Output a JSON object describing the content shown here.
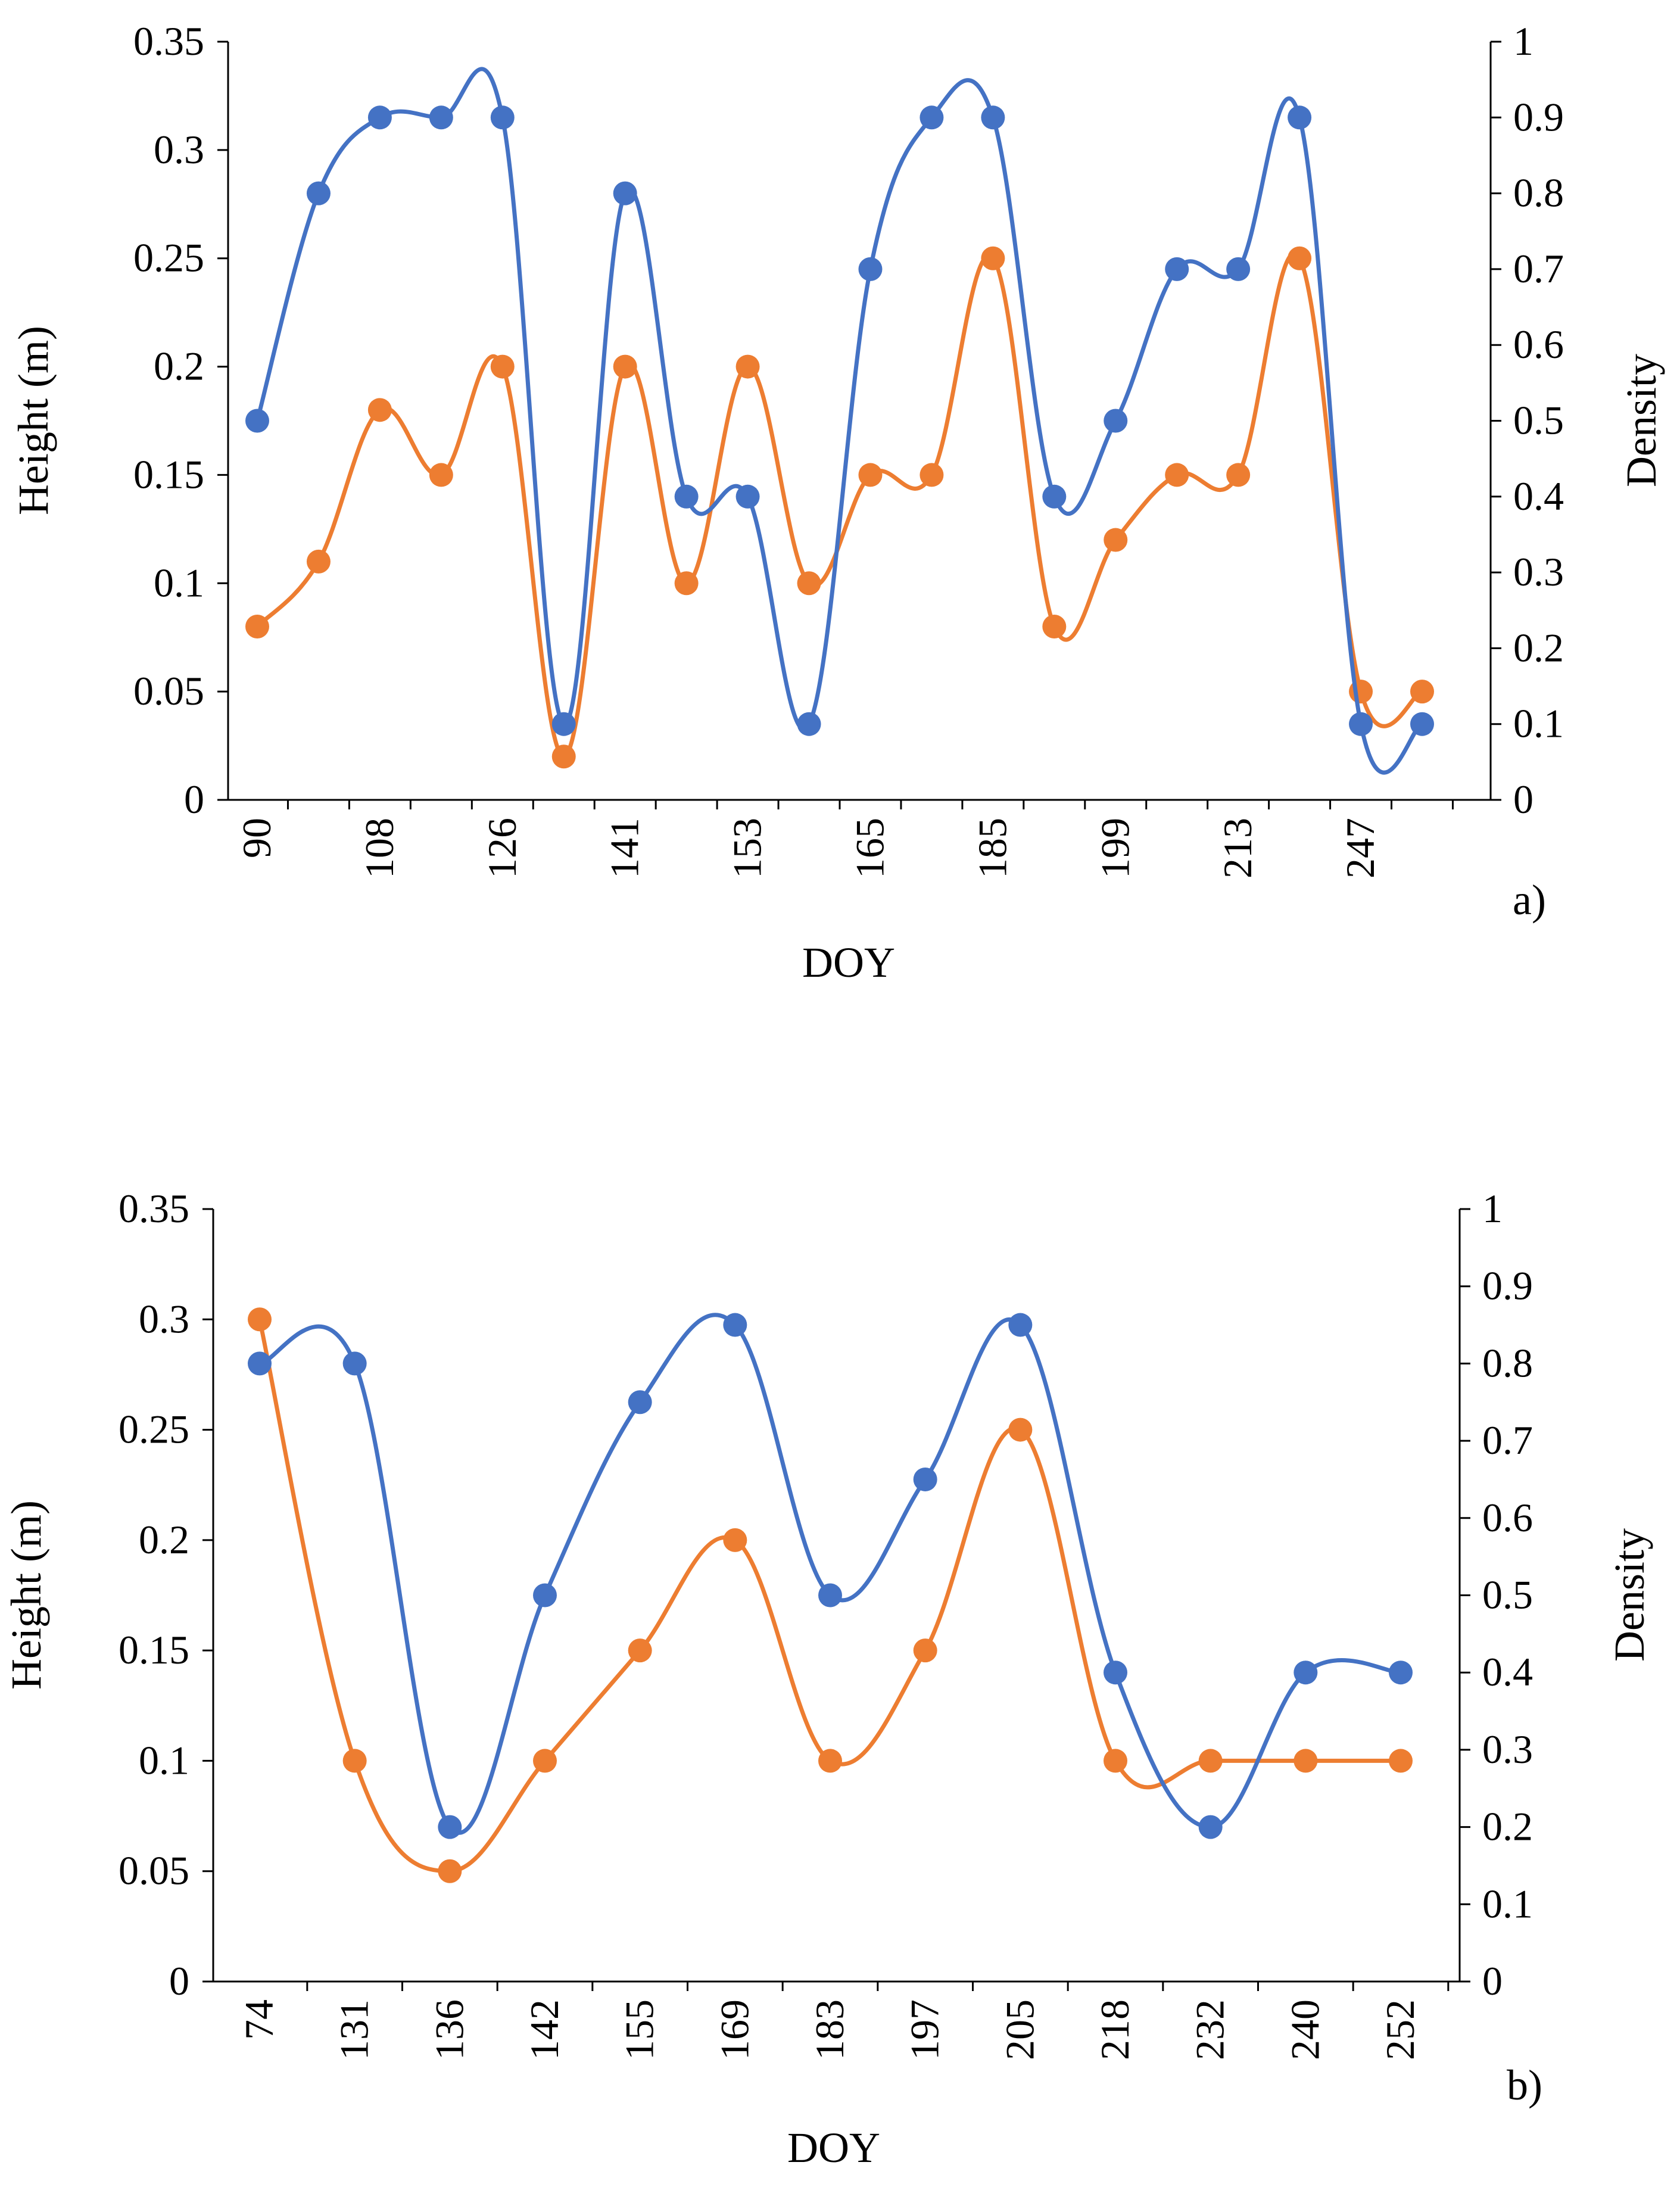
{
  "colors": {
    "height_series": "#ED7D31",
    "density_series": "#4472C4",
    "axis": "#000000"
  },
  "chart_data": [
    {
      "type": "line",
      "panel_label": "a)",
      "xlabel": "DOY",
      "ylabel": "Height (m)",
      "y2label": "Density",
      "ylim": [
        0,
        0.35
      ],
      "y2lim": [
        0,
        1
      ],
      "yticks": [
        "0",
        "0.05",
        "0.1",
        "0.15",
        "0.2",
        "0.25",
        "0.3",
        "0.35"
      ],
      "y2ticks": [
        "0",
        "0.1",
        "0.2",
        "0.3",
        "0.4",
        "0.5",
        "0.6",
        "0.7",
        "0.8",
        "0.9",
        "1"
      ],
      "num_points": 20,
      "xtick_labels": [
        {
          "index": 0,
          "label": "90"
        },
        {
          "index": 2,
          "label": "108"
        },
        {
          "index": 4,
          "label": "126"
        },
        {
          "index": 6,
          "label": "141"
        },
        {
          "index": 8,
          "label": "153"
        },
        {
          "index": 10,
          "label": "165"
        },
        {
          "index": 12,
          "label": "185"
        },
        {
          "index": 14,
          "label": "199"
        },
        {
          "index": 16,
          "label": "213"
        },
        {
          "index": 18,
          "label": "247"
        }
      ],
      "series": [
        {
          "name": "Height",
          "axis": "left",
          "color": "#ED7D31",
          "values": [
            0.08,
            0.11,
            0.18,
            0.15,
            0.2,
            0.02,
            0.2,
            0.1,
            0.2,
            0.1,
            0.15,
            0.15,
            0.25,
            0.08,
            0.12,
            0.15,
            0.15,
            0.25,
            0.05,
            0.05
          ]
        },
        {
          "name": "Density",
          "axis": "right",
          "color": "#4472C4",
          "values": [
            0.5,
            0.8,
            0.9,
            0.9,
            0.9,
            0.1,
            0.8,
            0.4,
            0.4,
            0.1,
            0.7,
            0.9,
            0.9,
            0.4,
            0.5,
            0.7,
            0.7,
            0.9,
            0.1,
            0.1
          ]
        }
      ]
    },
    {
      "type": "line",
      "panel_label": "b)",
      "xlabel": "DOY",
      "ylabel": "Height (m)",
      "y2label": "Density",
      "ylim": [
        0,
        0.35
      ],
      "y2lim": [
        0,
        1
      ],
      "yticks": [
        "0",
        "0.05",
        "0.1",
        "0.15",
        "0.2",
        "0.25",
        "0.3",
        "0.35"
      ],
      "y2ticks": [
        "0",
        "0.1",
        "0.2",
        "0.3",
        "0.4",
        "0.5",
        "0.6",
        "0.7",
        "0.8",
        "0.9",
        "1"
      ],
      "num_points": 13,
      "xtick_labels": [
        {
          "index": 0,
          "label": "74"
        },
        {
          "index": 1,
          "label": "131"
        },
        {
          "index": 2,
          "label": "136"
        },
        {
          "index": 3,
          "label": "142"
        },
        {
          "index": 4,
          "label": "155"
        },
        {
          "index": 5,
          "label": "169"
        },
        {
          "index": 6,
          "label": "183"
        },
        {
          "index": 7,
          "label": "197"
        },
        {
          "index": 8,
          "label": "205"
        },
        {
          "index": 9,
          "label": "218"
        },
        {
          "index": 10,
          "label": "232"
        },
        {
          "index": 11,
          "label": "240"
        },
        {
          "index": 12,
          "label": "252"
        }
      ],
      "series": [
        {
          "name": "Height",
          "axis": "left",
          "color": "#ED7D31",
          "values": [
            0.3,
            0.1,
            0.05,
            0.1,
            0.15,
            0.2,
            0.1,
            0.15,
            0.25,
            0.1,
            0.1,
            0.1,
            0.1
          ]
        },
        {
          "name": "Density",
          "axis": "right",
          "color": "#4472C4",
          "values": [
            0.8,
            0.8,
            0.2,
            0.5,
            0.75,
            0.85,
            0.5,
            0.65,
            0.85,
            0.4,
            0.2,
            0.4,
            0.4
          ]
        }
      ]
    }
  ]
}
